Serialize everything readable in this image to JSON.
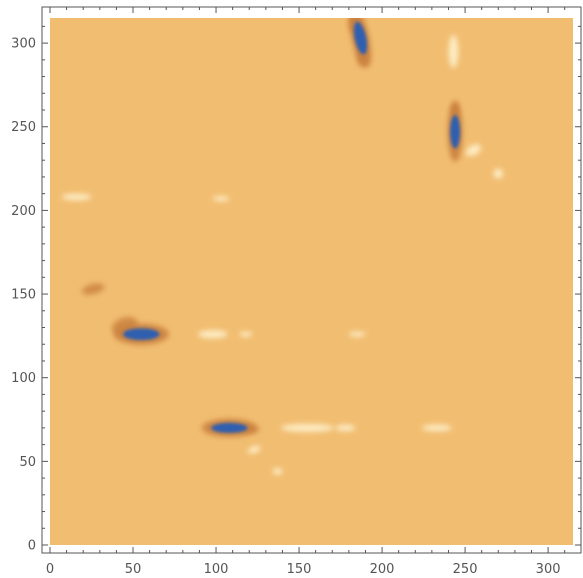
{
  "chart_data": {
    "type": "heatmap",
    "title": "",
    "xlabel": "",
    "ylabel": "",
    "xlim": [
      0,
      315
    ],
    "ylim": [
      0,
      315
    ],
    "x_ticks": [
      0,
      50,
      100,
      150,
      200,
      250,
      300
    ],
    "y_ticks": [
      0,
      50,
      100,
      150,
      200,
      250,
      300
    ],
    "x_tick_labels": [
      "0",
      "50",
      "100",
      "150",
      "200",
      "250",
      "300"
    ],
    "y_tick_labels": [
      "0",
      "50",
      "100",
      "150",
      "200",
      "250",
      "300"
    ],
    "grid": false,
    "colors": {
      "background": "#f1bd71",
      "low": "#2f5eb0",
      "dark": "#c9803c",
      "high": "#fff3cf",
      "frame": "#555555",
      "tick_label": "#555555"
    },
    "features": [
      {
        "x": 55,
        "y": 126,
        "kind": "low",
        "rx": 11,
        "ry": 3.5,
        "angle": 0
      },
      {
        "x": 108,
        "y": 70,
        "kind": "low",
        "rx": 11,
        "ry": 3,
        "angle": 0
      },
      {
        "x": 187,
        "y": 303,
        "kind": "low",
        "rx": 3.5,
        "ry": 10,
        "angle": -12
      },
      {
        "x": 244,
        "y": 247,
        "kind": "low",
        "rx": 3,
        "ry": 10,
        "angle": 0
      },
      {
        "x": 45,
        "y": 131,
        "kind": "dark",
        "rx": 8,
        "ry": 5,
        "angle": -20
      },
      {
        "x": 26,
        "y": 153,
        "kind": "dark",
        "rx": 7,
        "ry": 3,
        "angle": -15
      },
      {
        "x": 183,
        "y": 312,
        "kind": "dark",
        "rx": 3,
        "ry": 6,
        "angle": 0
      },
      {
        "x": 188,
        "y": 292,
        "kind": "dark",
        "rx": 3,
        "ry": 6,
        "angle": 0
      },
      {
        "x": 244,
        "y": 260,
        "kind": "dark",
        "rx": 2,
        "ry": 5,
        "angle": 0
      },
      {
        "x": 120,
        "y": 69,
        "kind": "dark",
        "rx": 6,
        "ry": 2,
        "angle": 0
      },
      {
        "x": 98,
        "y": 126,
        "kind": "high",
        "rx": 9,
        "ry": 2.5,
        "angle": 0
      },
      {
        "x": 155,
        "y": 70,
        "kind": "high",
        "rx": 16,
        "ry": 2.5,
        "angle": 0
      },
      {
        "x": 178,
        "y": 70,
        "kind": "high",
        "rx": 6,
        "ry": 2,
        "angle": 0
      },
      {
        "x": 233,
        "y": 70,
        "kind": "high",
        "rx": 9,
        "ry": 2,
        "angle": 0
      },
      {
        "x": 16,
        "y": 208,
        "kind": "high",
        "rx": 9,
        "ry": 2,
        "angle": 0
      },
      {
        "x": 185,
        "y": 126,
        "kind": "high",
        "rx": 5,
        "ry": 1.5,
        "angle": 0
      },
      {
        "x": 118,
        "y": 126,
        "kind": "high",
        "rx": 4,
        "ry": 1.5,
        "angle": 0
      },
      {
        "x": 243,
        "y": 295,
        "kind": "high",
        "rx": 3,
        "ry": 10,
        "angle": 0
      },
      {
        "x": 255,
        "y": 236,
        "kind": "high",
        "rx": 5,
        "ry": 3,
        "angle": -30
      },
      {
        "x": 270,
        "y": 222,
        "kind": "high",
        "rx": 3,
        "ry": 3,
        "angle": 0
      },
      {
        "x": 103,
        "y": 207,
        "kind": "high",
        "rx": 5,
        "ry": 1.5,
        "angle": 0
      },
      {
        "x": 123,
        "y": 57,
        "kind": "high",
        "rx": 4,
        "ry": 2,
        "angle": -20
      },
      {
        "x": 137,
        "y": 44,
        "kind": "high",
        "rx": 3,
        "ry": 2,
        "angle": 0
      }
    ]
  }
}
